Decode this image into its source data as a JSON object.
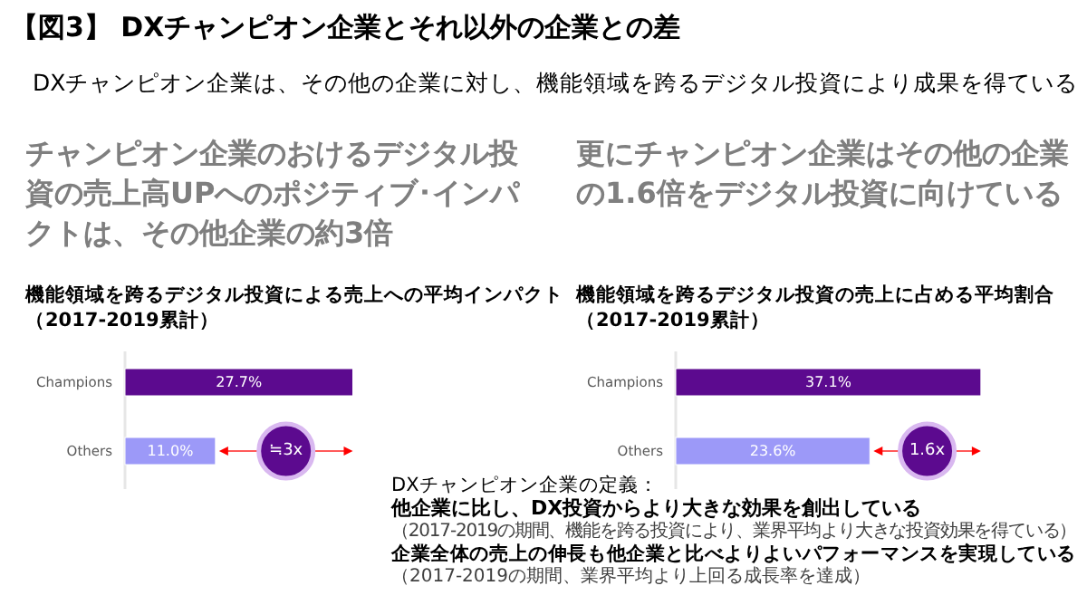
{
  "chart_data": [
    {
      "type": "other",
      "title": "【図3】 DXチャンピオン企業とそれ以外の企業との差",
      "subtitle": "DXチャンピオン企業は、その他の企業に対し、機能領域を跨るデジタル投資により成果を得ている",
      "annotations": [
        "DXチャンピオン企業の定義：",
        "他企業に比し、DX投資からより大きな効果を創出している",
        "（2017-2019の期間、機能を跨る投資により、業界平均より大きな投資効果を得ている）",
        "企業全体の売上の伸長も他企業と比べよりよいパフォーマンスを実現している",
        "（2017-2019の期間、業界平均より上回る成長率を達成）"
      ]
    },
    {
      "type": "bar",
      "orientation": "horizontal",
      "title": "チャンピオン企業のおけるデジタル投資の売上高UPへのポジティブ･インパクトは、その他企業の約3倍",
      "subtitle": "機能領域を跨るデジタル投資による売上への平均インパクト（2017-2019累計）",
      "categories": [
        "Champions",
        "Others"
      ],
      "values": [
        27.7,
        11.0
      ],
      "colors": [
        "#5c0a8f",
        "#9c99f8"
      ],
      "value_labels": [
        "27.7%",
        "11.0%"
      ],
      "annotations": [
        "≒3x"
      ]
    },
    {
      "type": "bar",
      "orientation": "horizontal",
      "title": "更にチャンピオン企業はその他の企業の1.6倍をデジタル投資に向けている",
      "subtitle": "機能領域を跨るデジタル投資の売上に占める平均割合（2017-2019累計）",
      "categories": [
        "Champions",
        "Others"
      ],
      "values": [
        37.1,
        23.6
      ],
      "colors": [
        "#5c0a8f",
        "#9c99f8"
      ],
      "value_labels": [
        "37.1%",
        "23.6%"
      ],
      "annotations": [
        "1.6x"
      ]
    }
  ]
}
